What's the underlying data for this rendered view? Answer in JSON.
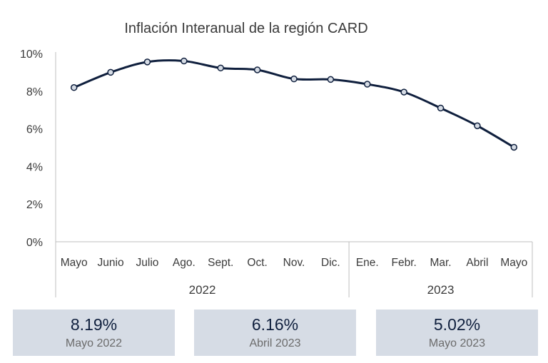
{
  "chart_data": {
    "type": "line",
    "title": "Inflación Interanual de la región CARD",
    "categories": [
      "Mayo",
      "Junio",
      "Julio",
      "Ago.",
      "Sept.",
      "Oct.",
      "Nov.",
      "Dic.",
      "Ene.",
      "Febr.",
      "Mar.",
      "Abril",
      "Mayo"
    ],
    "groups": [
      {
        "label": "2022",
        "count": 8
      },
      {
        "label": "2023",
        "count": 5
      }
    ],
    "series": [
      {
        "values": [
          8.19,
          9.0,
          9.55,
          9.6,
          9.23,
          9.13,
          8.65,
          8.62,
          8.37,
          7.95,
          7.1,
          6.16,
          5.02
        ]
      }
    ],
    "ylim": [
      0,
      10
    ],
    "yticks": [
      "0%",
      "2%",
      "4%",
      "6%",
      "8%",
      "10%"
    ],
    "ytick_values": [
      0,
      2,
      4,
      6,
      8,
      10
    ],
    "grid": false,
    "line_color": "#0f1f3d",
    "marker_fill": "#d6dce5"
  },
  "cards": [
    {
      "value": "8.19%",
      "label": "Mayo 2022"
    },
    {
      "value": "6.16%",
      "label": "Abril 2023"
    },
    {
      "value": "5.02%",
      "label": "Mayo 2023"
    }
  ]
}
